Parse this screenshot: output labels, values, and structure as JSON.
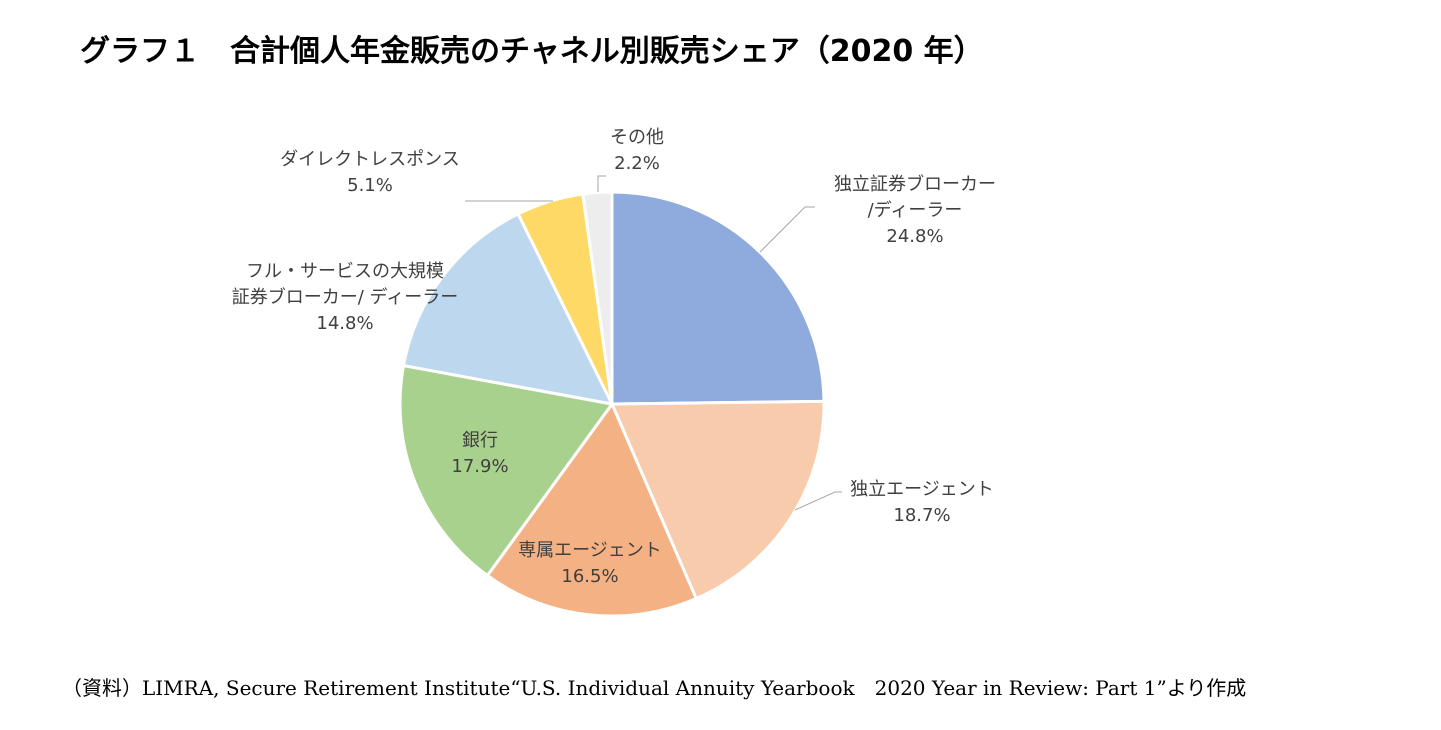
{
  "title": "グラフ１　合計個人年金販売のチャネル別販売シェア（2020 年）",
  "source": "（資料）LIMRA, Secure Retirement Institute“U.S. Individual Annuity Yearbook　2020 Year in Review: Part 1”より作成",
  "chart_data": {
    "type": "pie",
    "slices": [
      {
        "label_lines": [
          "独立証券ブローカー",
          "/ディーラー"
        ],
        "value": 24.8,
        "value_label": "24.8%",
        "color": "#8faadc"
      },
      {
        "label_lines": [
          "独立エージェント"
        ],
        "value": 18.7,
        "value_label": "18.7%",
        "color": "#f8cbad"
      },
      {
        "label_lines": [
          "専属エージェント"
        ],
        "value": 16.5,
        "value_label": "16.5%",
        "color": "#f4b183"
      },
      {
        "label_lines": [
          "銀行"
        ],
        "value": 17.9,
        "value_label": "17.9%",
        "color": "#a9d18e"
      },
      {
        "label_lines": [
          "フル・サービスの大規模",
          "証券ブローカー/ ディーラー"
        ],
        "value": 14.8,
        "value_label": "14.8%",
        "color": "#bdd7ee"
      },
      {
        "label_lines": [
          "ダイレクトレスポンス"
        ],
        "value": 5.1,
        "value_label": "5.1%",
        "color": "#ffd966"
      },
      {
        "label_lines": [
          "その他"
        ],
        "value": 2.2,
        "value_label": "2.2%",
        "color": "#ededed"
      }
    ]
  }
}
